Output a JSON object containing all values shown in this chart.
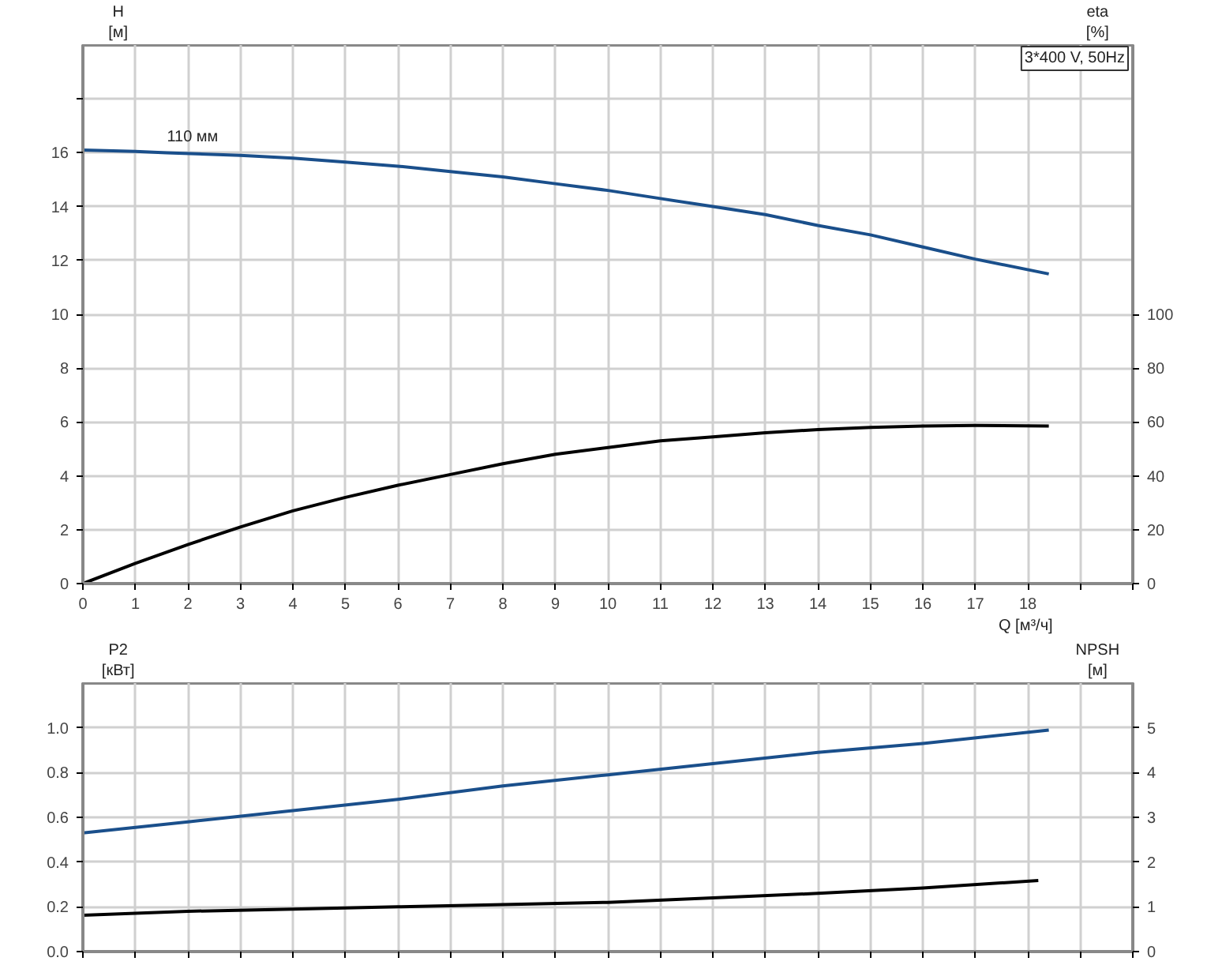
{
  "chart_data": [
    {
      "type": "line",
      "xlabel": "Q [м³/ч]",
      "ylabel": "H [м]",
      "y2label": "eta [%]",
      "xlim": [
        0,
        20
      ],
      "xticks": [
        0,
        1,
        2,
        3,
        4,
        5,
        6,
        7,
        8,
        9,
        10,
        11,
        12,
        13,
        14,
        15,
        16,
        17,
        18,
        {
          "value": 19,
          "label": null
        },
        {
          "value": 20,
          "label": null
        }
      ],
      "ylim": [
        0,
        20
      ],
      "yticks": [
        0,
        2,
        4,
        6,
        8,
        10,
        12,
        14,
        16,
        {
          "value": 18,
          "label": null
        }
      ],
      "y2lim": [
        0,
        200
      ],
      "y2ticks": [
        0,
        20,
        40,
        60,
        80,
        100
      ],
      "grid": true,
      "annotations": [
        "3*400 V, 50Hz",
        {
          "text": "110 мм",
          "x": 1.6,
          "y": 16.0
        }
      ],
      "series": [
        {
          "color": "#1a4f8b",
          "x": [
            0,
            1,
            1.6,
            3,
            4,
            5,
            6,
            7,
            8,
            9,
            10,
            11,
            12,
            13,
            14,
            15,
            16,
            17,
            18.4
          ],
          "values": [
            16.1,
            16.05,
            16.0,
            15.9,
            15.8,
            15.65,
            15.5,
            15.3,
            15.1,
            14.85,
            14.6,
            14.3,
            14.0,
            13.7,
            13.3,
            12.95,
            12.5,
            12.05,
            11.5
          ]
        },
        {
          "color": "#000000",
          "axis": "y2",
          "x": [
            0,
            1,
            2,
            3,
            4,
            5,
            6,
            7,
            8,
            9,
            10,
            11,
            12,
            13,
            14,
            15,
            16,
            17,
            18.4
          ],
          "values": [
            0,
            7.5,
            14.5,
            21,
            27,
            32,
            36.5,
            40.5,
            44.5,
            48,
            50.5,
            53,
            54.5,
            56,
            57.2,
            58,
            58.5,
            58.7,
            58.5
          ]
        }
      ]
    },
    {
      "type": "line",
      "ylabel": "P2 [кВт]",
      "y2label": "NPSH [м]",
      "tick_labels": "y",
      "xlim": [
        0,
        20
      ],
      "xticks": [
        0,
        1,
        2,
        3,
        4,
        5,
        6,
        7,
        8,
        9,
        10,
        11,
        12,
        13,
        14,
        15,
        16,
        17,
        18,
        19,
        20
      ],
      "ylim": [
        0,
        1.2
      ],
      "yticks": [
        {
          "value": 0,
          "label": "0.0"
        },
        0.2,
        0.4,
        0.6,
        0.8,
        {
          "value": 1,
          "label": "1.0"
        }
      ],
      "y2lim": [
        0,
        6
      ],
      "y2ticks": [
        0,
        1,
        2,
        3,
        4,
        5
      ],
      "grid": true,
      "series": [
        {
          "color": "#1a4f8b",
          "x": [
            0,
            2,
            4,
            6,
            8,
            10,
            12,
            14,
            16,
            18.4
          ],
          "values": [
            0.53,
            0.58,
            0.63,
            0.68,
            0.74,
            0.79,
            0.84,
            0.89,
            0.93,
            0.99
          ]
        },
        {
          "color": "#000000",
          "axis": "y2",
          "x": [
            0,
            2,
            4,
            6,
            8,
            10,
            12,
            14,
            16,
            18.2
          ],
          "values": [
            0.81,
            0.9,
            0.95,
            1.0,
            1.05,
            1.1,
            1.2,
            1.3,
            1.42,
            1.59
          ]
        }
      ]
    }
  ]
}
